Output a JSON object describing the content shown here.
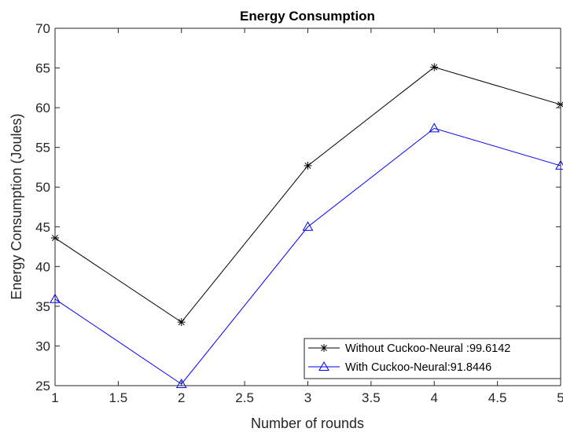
{
  "chart_data": {
    "type": "line",
    "title": "Energy Consumption",
    "xlabel": "Number of rounds",
    "ylabel": "Energy Consumption (Joules)",
    "xlim": [
      1,
      5
    ],
    "ylim": [
      25,
      70
    ],
    "xticks": [
      1,
      1.5,
      2,
      2.5,
      3,
      3.5,
      4,
      4.5,
      5
    ],
    "xtick_labels": [
      "1",
      "1.5",
      "2",
      "2.5",
      "3",
      "3.5",
      "4",
      "4.5",
      "5"
    ],
    "yticks": [
      25,
      30,
      35,
      40,
      45,
      50,
      55,
      60,
      65,
      70
    ],
    "ytick_labels": [
      "25",
      "30",
      "35",
      "40",
      "45",
      "50",
      "55",
      "60",
      "65",
      "70"
    ],
    "grid": false,
    "legend_position": "bottom-right",
    "x": [
      1,
      2,
      3,
      4,
      5
    ],
    "series": [
      {
        "name": "Without Cuckoo-Neural :99.6142",
        "values": [
          43.6,
          33.0,
          52.7,
          65.1,
          60.4
        ],
        "color": "#000000",
        "marker": "asterisk"
      },
      {
        "name": "With Cuckoo-Neural:91.8446",
        "values": [
          35.9,
          25.2,
          45.0,
          57.4,
          52.7
        ],
        "color": "#0000ff",
        "marker": "triangle"
      }
    ]
  }
}
